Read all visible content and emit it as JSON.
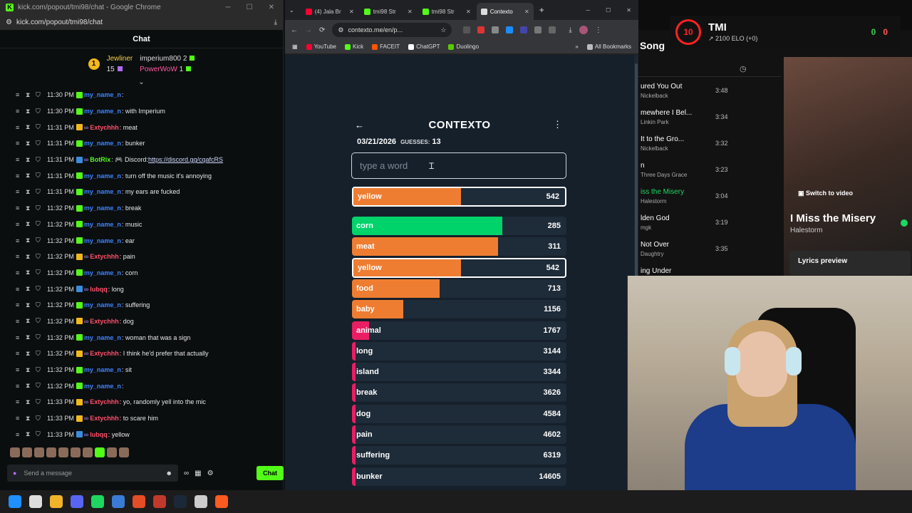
{
  "kick": {
    "window_title": "kick.com/popout/tmi98/chat - Google Chrome",
    "url": "kick.com/popout/tmi98/chat",
    "chat_header": "Chat",
    "leaderboard": {
      "rank": "1",
      "top_name": "Jewliner",
      "top_count": "15",
      "second_name": "imperium800",
      "second_count": "2",
      "third_name": "PowerWoW",
      "third_count": "1"
    },
    "messages": [
      {
        "time": "11:30 PM",
        "badge": "green",
        "user": "my_name_n",
        "ucolor": "blue",
        "text": ":"
      },
      {
        "time": "11:30 PM",
        "badge": "green",
        "user": "my_name_n",
        "ucolor": "blue",
        "text": ": with Imperium"
      },
      {
        "time": "11:31 PM",
        "badge": "gold",
        "user": "Extychhh",
        "ucolor": "pink",
        "text": ": meat"
      },
      {
        "time": "11:31 PM",
        "badge": "green",
        "user": "my_name_n",
        "ucolor": "blue",
        "text": ": bunker"
      },
      {
        "time": "11:31 PM",
        "badge": "blue",
        "user": "BotRix",
        "ucolor": "green",
        "text": ": 🎮 Discord: ",
        "link": "https://discord.gg/cqafcRS"
      },
      {
        "time": "11:31 PM",
        "badge": "green",
        "user": "my_name_n",
        "ucolor": "blue",
        "text": ": turn off the music it's annoying"
      },
      {
        "time": "11:31 PM",
        "badge": "green",
        "user": "my_name_n",
        "ucolor": "blue",
        "text": ": my ears are fucked"
      },
      {
        "time": "11:32 PM",
        "badge": "green",
        "user": "my_name_n",
        "ucolor": "blue",
        "text": ": break"
      },
      {
        "time": "11:32 PM",
        "badge": "green",
        "user": "my_name_n",
        "ucolor": "blue",
        "text": ": music"
      },
      {
        "time": "11:32 PM",
        "badge": "green",
        "user": "my_name_n",
        "ucolor": "blue",
        "text": ": ear"
      },
      {
        "time": "11:32 PM",
        "badge": "gold",
        "user": "Extychhh",
        "ucolor": "pink",
        "text": ": pain"
      },
      {
        "time": "11:32 PM",
        "badge": "green",
        "user": "my_name_n",
        "ucolor": "blue",
        "text": ": corn"
      },
      {
        "time": "11:32 PM",
        "badge": "blue",
        "user": "lubqq",
        "ucolor": "pink",
        "text": ": long"
      },
      {
        "time": "11:32 PM",
        "badge": "green",
        "user": "my_name_n",
        "ucolor": "blue",
        "text": ": suffering"
      },
      {
        "time": "11:32 PM",
        "badge": "gold",
        "user": "Extychhh",
        "ucolor": "pink",
        "text": ": dog"
      },
      {
        "time": "11:32 PM",
        "badge": "green",
        "user": "my_name_n",
        "ucolor": "blue",
        "text": ": woman that was a sign"
      },
      {
        "time": "11:32 PM",
        "badge": "gold",
        "user": "Extychhh",
        "ucolor": "pink",
        "text": ": I think he'd prefer that actually"
      },
      {
        "time": "11:32 PM",
        "badge": "green",
        "user": "my_name_n",
        "ucolor": "blue",
        "text": ": sit"
      },
      {
        "time": "11:32 PM",
        "badge": "green",
        "user": "my_name_n",
        "ucolor": "blue",
        "text": ":"
      },
      {
        "time": "11:33 PM",
        "badge": "gold",
        "user": "Extychhh",
        "ucolor": "pink",
        "text": ": yo, randomly yell into the mic"
      },
      {
        "time": "11:33 PM",
        "badge": "gold",
        "user": "Extychhh",
        "ucolor": "pink",
        "text": ": to scare him"
      },
      {
        "time": "11:33 PM",
        "badge": "blue",
        "user": "lubqq",
        "ucolor": "pink",
        "text": ": yellow"
      }
    ],
    "composer": {
      "placeholder": "Send a message",
      "chat_button": "Chat"
    }
  },
  "browser": {
    "tabs": [
      {
        "label": "(4) Jala Br",
        "color": "#ff0033",
        "active": false
      },
      {
        "label": "tmi98 Str",
        "color": "#53fc18",
        "active": false
      },
      {
        "label": "tmi98 Str",
        "color": "#53fc18",
        "active": false
      },
      {
        "label": "Contexto",
        "color": "#dddddd",
        "active": true
      }
    ],
    "url": "contexto.me/en/p...",
    "bookmarks": [
      "YouTube",
      "Kick",
      "FACEIT",
      "ChatGPT",
      "Duolingo"
    ],
    "bookmark_colors": [
      "#ff0033",
      "#53fc18",
      "#ff5500",
      "#ffffff",
      "#58cc02"
    ],
    "all_bookmarks": "All Bookmarks"
  },
  "contexto": {
    "title": "CONTEXTO",
    "date": "03/21/2026",
    "guesses_label": "GUESSES:",
    "guesses": "13",
    "input_placeholder": "type a word",
    "last_guess": {
      "word": "yellow",
      "distance": 542,
      "fill": 0.5,
      "color": "#ef7d31"
    },
    "guesses_list": [
      {
        "word": "corn",
        "distance": 285,
        "fill": 0.7,
        "color": "#01d36b",
        "highlight": false
      },
      {
        "word": "meat",
        "distance": 311,
        "fill": 0.68,
        "color": "#ef7d31",
        "highlight": false
      },
      {
        "word": "yellow",
        "distance": 542,
        "fill": 0.5,
        "color": "#ef7d31",
        "highlight": true
      },
      {
        "word": "food",
        "distance": 713,
        "fill": 0.41,
        "color": "#ef7d31",
        "highlight": false
      },
      {
        "word": "baby",
        "distance": 1156,
        "fill": 0.24,
        "color": "#ef7d31",
        "highlight": false
      },
      {
        "word": "animal",
        "distance": 1767,
        "fill": 0.08,
        "color": "#e91e63",
        "highlight": false
      },
      {
        "word": "long",
        "distance": 3144,
        "fill": 0.012,
        "color": "#e91e63",
        "highlight": false
      },
      {
        "word": "island",
        "distance": 3344,
        "fill": 0.012,
        "color": "#e91e63",
        "highlight": false
      },
      {
        "word": "break",
        "distance": 3626,
        "fill": 0.012,
        "color": "#e91e63",
        "highlight": false
      },
      {
        "word": "dog",
        "distance": 4584,
        "fill": 0.012,
        "color": "#e91e63",
        "highlight": false
      },
      {
        "word": "pain",
        "distance": 4602,
        "fill": 0.012,
        "color": "#e91e63",
        "highlight": false
      },
      {
        "word": "suffering",
        "distance": 6319,
        "fill": 0.012,
        "color": "#e91e63",
        "highlight": false
      },
      {
        "word": "bunker",
        "distance": 14605,
        "fill": 0.012,
        "color": "#e91e63",
        "highlight": false
      }
    ]
  },
  "spotify": {
    "header": "Song",
    "tracks": [
      {
        "title": "ured You Out",
        "artist": "Nickelback",
        "dur": "3:48"
      },
      {
        "title": "mewhere I Bel...",
        "artist": "Linkin Park",
        "dur": "3:34"
      },
      {
        "title": "It to the Gro...",
        "artist": "Nickelback",
        "dur": "3:32"
      },
      {
        "title": "n",
        "artist": "Three Days Grace",
        "dur": "3:23"
      },
      {
        "title": "iss the Misery",
        "artist": "Halestorm",
        "dur": "3:04",
        "playing": true
      },
      {
        "title": "lden God",
        "artist": "mgk",
        "dur": "3:19"
      },
      {
        "title": "Not Over",
        "artist": "Daughtry",
        "dur": "3:35"
      },
      {
        "title": "ing Under",
        "artist": "",
        "dur": ""
      }
    ],
    "switch_video": "Switch to video",
    "now_playing_title": "I Miss the Misery",
    "now_playing_artist": "Halestorm",
    "lyrics_preview": "Lyrics preview"
  },
  "faceit": {
    "level": "10",
    "name": "TMI",
    "elo": "2100 ELO (+0)",
    "wins": "0",
    "losses": "0"
  },
  "taskbar_colors": [
    "#1e90ff",
    "#dddddd",
    "#f0b429",
    "#5865f2",
    "#1ed760",
    "#3a7bd5",
    "#e44d26",
    "#c0392b",
    "#1b2838",
    "#cccccc",
    "#ff5a1f"
  ]
}
